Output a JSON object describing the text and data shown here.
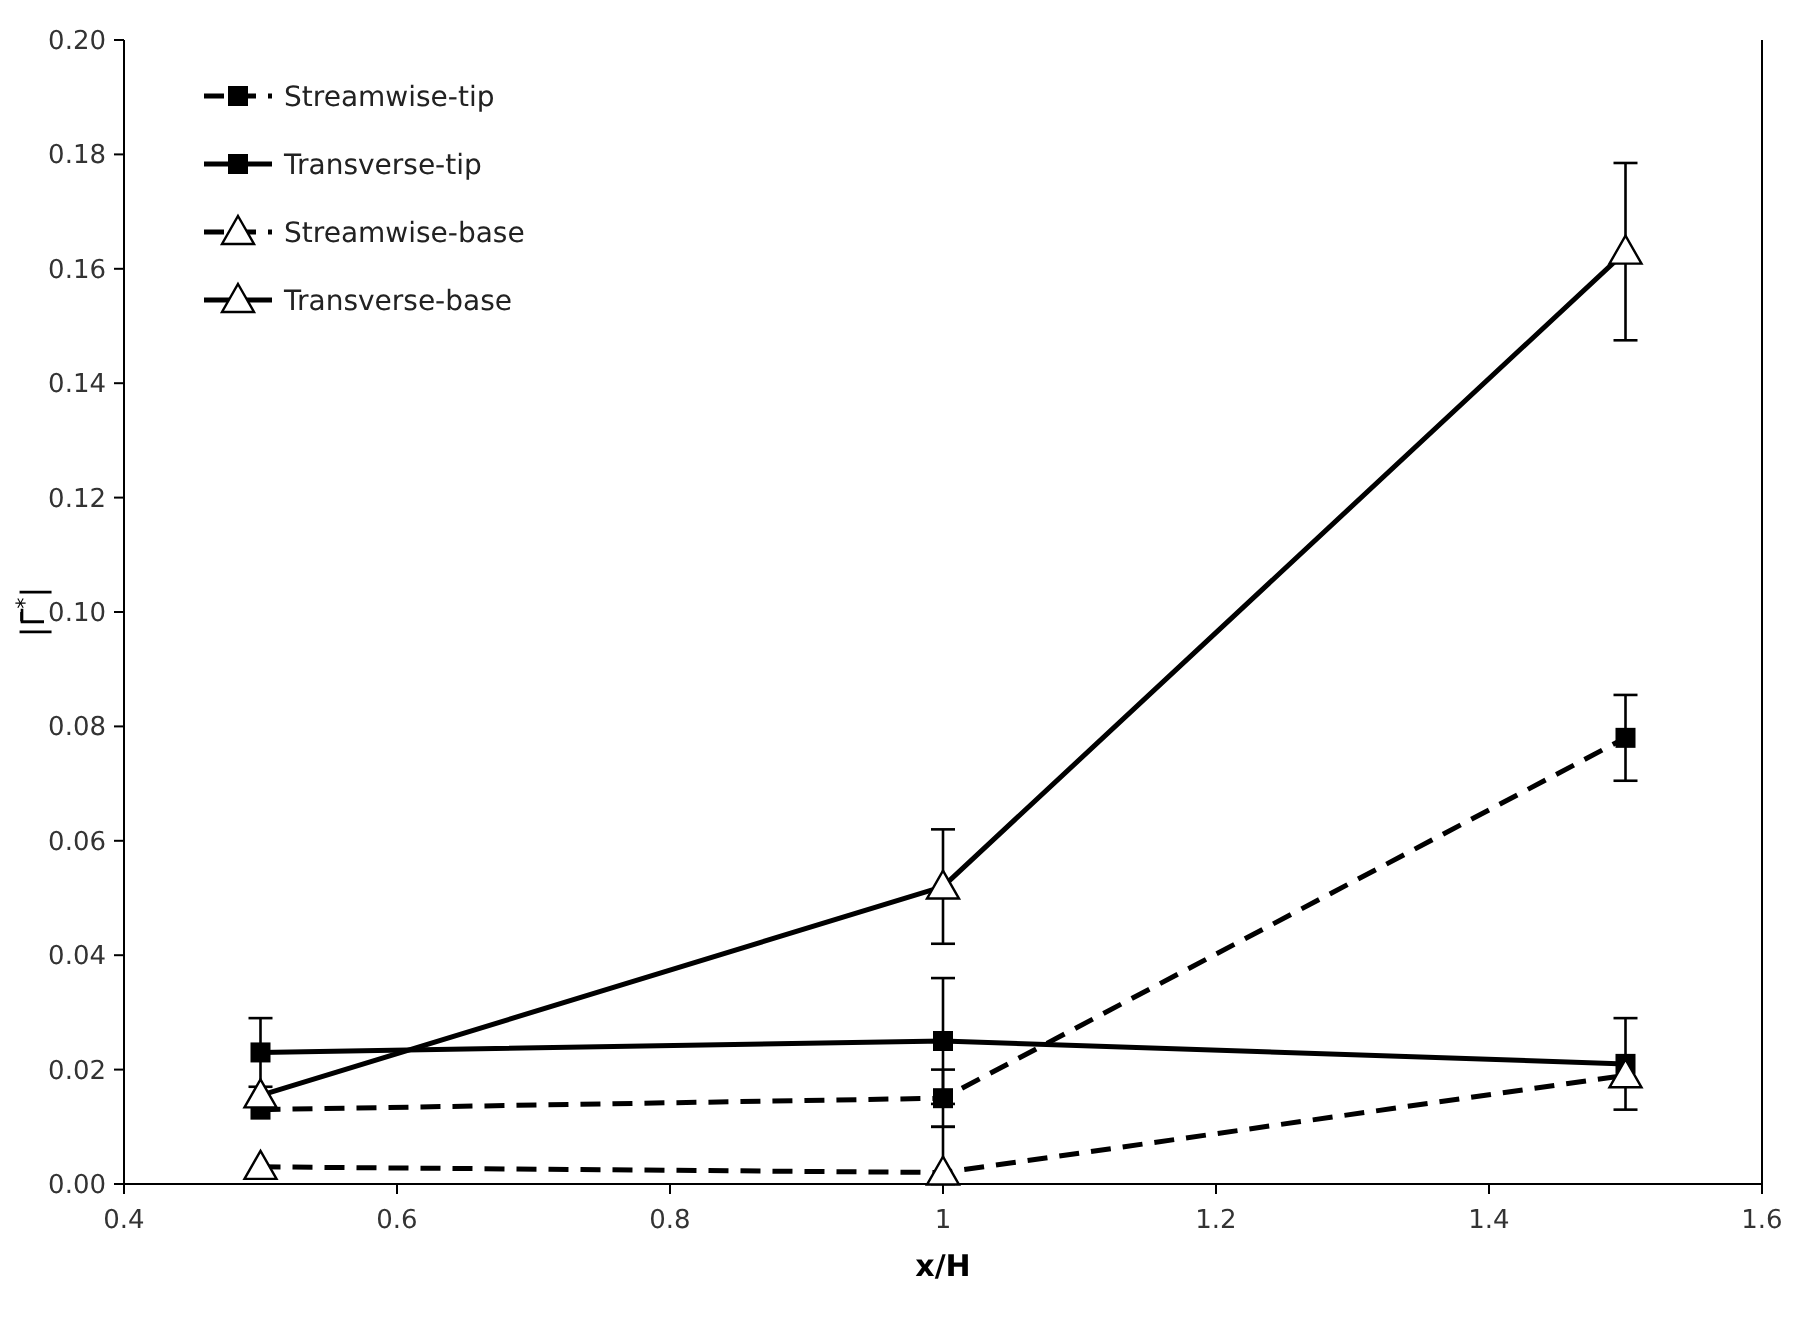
{
  "chart_data": {
    "type": "line",
    "xlabel": "x/H",
    "ylabel": "|Γ̄$^{*}$|",
    "x": [
      0.5,
      1,
      1.5
    ],
    "series": [
      {
        "name": "Streamwise-tip",
        "color": "#000000",
        "marker": "square",
        "line_style": "dashed",
        "values": [
          0.013,
          0.015,
          0.078
        ],
        "errors": [
          null,
          0.005,
          0.0075
        ]
      },
      {
        "name": "Transverse-tip",
        "color": "#000000",
        "marker": "square",
        "line_style": "solid",
        "values": [
          0.023,
          0.025,
          0.021
        ],
        "errors": [
          0.006,
          0.011,
          0.008
        ]
      },
      {
        "name": "Streamwise-base",
        "color": "#000000",
        "marker": "triangle",
        "line_style": "dashed",
        "values": [
          0.003,
          0.002,
          0.019
        ],
        "errors": [
          null,
          [
            0,
            0.01
          ],
          null
        ]
      },
      {
        "name": "Transverse-base",
        "color": "#000000",
        "marker": "triangle",
        "line_style": "solid",
        "values": [
          0.0155,
          0.052,
          0.163
        ],
        "errors": [
          null,
          0.01,
          0.0155
        ]
      }
    ],
    "xlim": [
      0.4,
      1.6
    ],
    "xticks": [
      0.4,
      0.6,
      0.8,
      1,
      1.2,
      1.4,
      1.6
    ],
    "ylim": [
      0,
      0.2
    ],
    "yticks": [
      {
        "value": 0,
        "label": "0.00"
      },
      {
        "value": 0.02,
        "label": "0.02"
      },
      {
        "value": 0.04,
        "label": "0.04"
      },
      {
        "value": 0.06,
        "label": "0.06"
      },
      {
        "value": 0.08,
        "label": "0.08"
      },
      {
        "value": 0.1,
        "label": "0.10"
      },
      {
        "value": 0.12,
        "label": "0.12"
      },
      {
        "value": 0.14,
        "label": "0.14"
      },
      {
        "value": 0.16,
        "label": "0.16"
      },
      {
        "value": 0.18,
        "label": "0.18"
      },
      {
        "value": 0.2,
        "label": "0.20"
      }
    ],
    "legend": "top left"
  }
}
